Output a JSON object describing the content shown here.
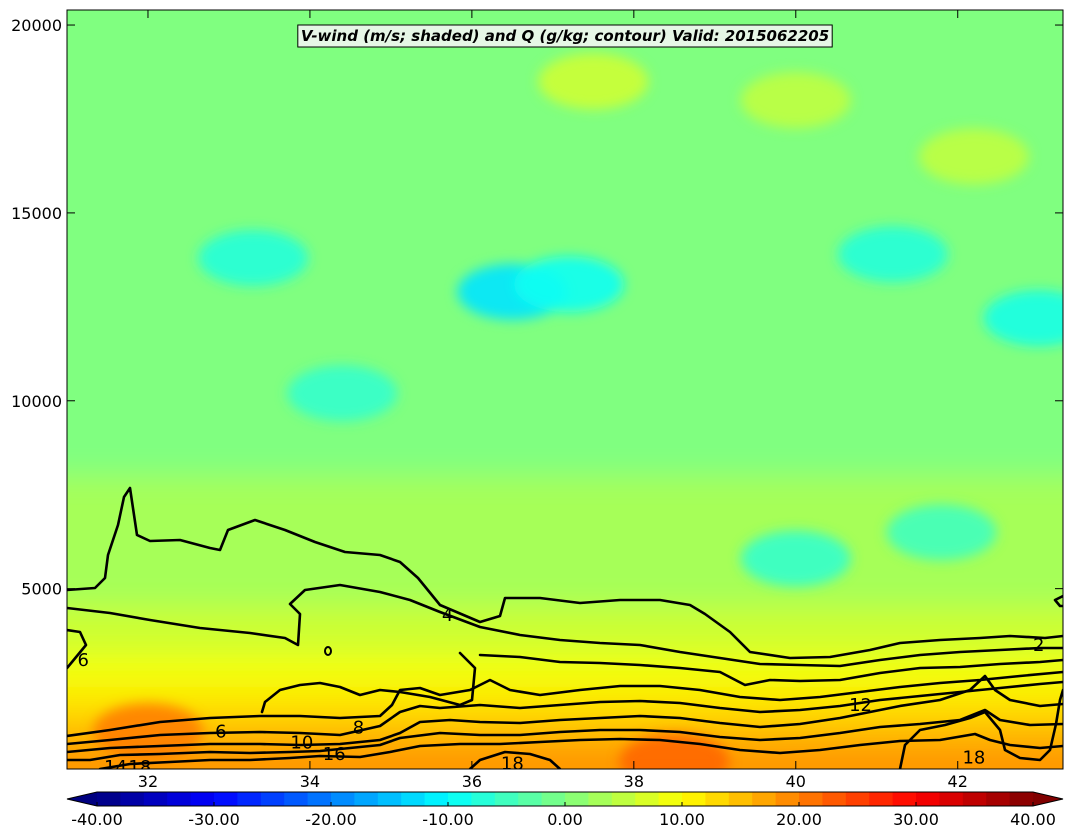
{
  "chart_data": {
    "type": "heatmap",
    "title": "V-wind (m/s; shaded) and Q (g/kg; contour) Valid: 2015062205",
    "xlabel": "",
    "ylabel": "",
    "xlim": [
      31.0,
      43.3
    ],
    "ylim": [
      200,
      20400
    ],
    "xticks": [
      32,
      34,
      36,
      38,
      40,
      42
    ],
    "yticks": [
      5000,
      10000,
      15000,
      20000
    ],
    "grid": false,
    "colorbar": {
      "orientation": "horizontal",
      "location": "bottom",
      "range": [
        -40,
        40
      ],
      "ticks": [
        "-40.00",
        "-30.00",
        "-20.00",
        "-10.00",
        "0.00",
        "10.00",
        "20.00",
        "30.00",
        "40.00"
      ],
      "extend": "both",
      "colormap": "jet"
    },
    "shaded_field": {
      "variable": "V-wind",
      "units": "m/s",
      "layers": [
        {
          "zmin": 200,
          "zmax": 900,
          "value": 18
        },
        {
          "zmin": 900,
          "zmax": 1600,
          "value": 15
        },
        {
          "zmin": 1600,
          "zmax": 2400,
          "value": 12
        },
        {
          "zmin": 2400,
          "zmax": 3300,
          "value": 9
        },
        {
          "zmin": 3300,
          "zmax": 4500,
          "value": 6
        },
        {
          "zmin": 4500,
          "zmax": 8000,
          "value": 3
        },
        {
          "zmin": 8000,
          "zmax": 20400,
          "value": 0
        }
      ],
      "features": [
        {
          "x": 36.5,
          "z": 12900,
          "value": -12
        },
        {
          "x": 37.2,
          "z": 13100,
          "value": -9
        },
        {
          "x": 41.2,
          "z": 13900,
          "value": -7
        },
        {
          "x": 43.0,
          "z": 12200,
          "value": -8
        },
        {
          "x": 40.0,
          "z": 5800,
          "value": -6
        },
        {
          "x": 41.8,
          "z": 6500,
          "value": -5
        },
        {
          "x": 34.4,
          "z": 10200,
          "value": -6
        },
        {
          "x": 33.3,
          "z": 13800,
          "value": -7
        },
        {
          "x": 37.5,
          "z": 18500,
          "value": 6
        },
        {
          "x": 40.0,
          "z": 18000,
          "value": 5
        },
        {
          "x": 42.2,
          "z": 16500,
          "value": 5
        },
        {
          "x": 38.5,
          "z": 400,
          "value": 22
        },
        {
          "x": 32.0,
          "z": 1200,
          "value": 20
        }
      ]
    },
    "contour_field": {
      "variable": "Q",
      "units": "g/kg",
      "levels": [
        2,
        4,
        6,
        8,
        10,
        12,
        14,
        16,
        18
      ],
      "labels": [
        {
          "text": "2",
          "x": 43.0,
          "z": 3500
        },
        {
          "text": "4",
          "x": 35.7,
          "z": 4300
        },
        {
          "text": "6",
          "x": 31.2,
          "z": 3100
        },
        {
          "text": "6",
          "x": 32.9,
          "z": 1200
        },
        {
          "text": "8",
          "x": 34.6,
          "z": 1300
        },
        {
          "text": "10",
          "x": 33.9,
          "z": 900
        },
        {
          "text": "12",
          "x": 40.8,
          "z": 1900
        },
        {
          "text": "14",
          "x": 31.6,
          "z": 250
        },
        {
          "text": "16",
          "x": 34.3,
          "z": 600
        },
        {
          "text": "18",
          "x": 31.9,
          "z": 250
        },
        {
          "text": "18",
          "x": 36.5,
          "z": 350
        },
        {
          "text": "18",
          "x": 42.2,
          "z": 500
        }
      ]
    }
  }
}
